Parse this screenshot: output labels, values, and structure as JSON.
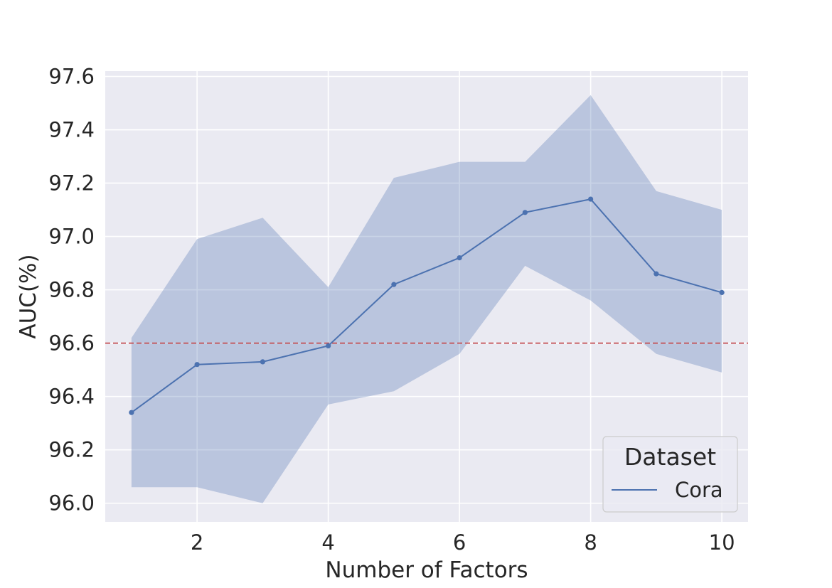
{
  "chart_data": {
    "type": "line",
    "xlabel": "Number of Factors",
    "ylabel": "AUC(%)",
    "xlim": [
      0.6,
      10.4
    ],
    "ylim": [
      95.93,
      97.62
    ],
    "xticks": [
      2,
      4,
      6,
      8,
      10
    ],
    "yticks": [
      96.0,
      96.2,
      96.4,
      96.6,
      96.8,
      97.0,
      97.2,
      97.4,
      97.6
    ],
    "xtick_labels": [
      "2",
      "4",
      "6",
      "8",
      "10"
    ],
    "ytick_labels": [
      "96.0",
      "96.2",
      "96.4",
      "96.6",
      "96.8",
      "97.0",
      "97.2",
      "97.4",
      "97.6"
    ],
    "grid": true,
    "series": [
      {
        "name": "Cora",
        "color": "#4c72b0",
        "x": [
          1,
          2,
          3,
          4,
          5,
          6,
          7,
          8,
          9,
          10
        ],
        "y": [
          96.34,
          96.52,
          96.53,
          96.59,
          96.82,
          96.92,
          97.09,
          97.14,
          96.86,
          96.79
        ],
        "ci_lower": [
          96.06,
          96.06,
          96.0,
          96.37,
          96.42,
          96.56,
          96.89,
          96.76,
          96.56,
          96.49
        ],
        "ci_upper": [
          96.62,
          96.99,
          97.07,
          96.81,
          97.22,
          97.28,
          97.28,
          97.53,
          97.17,
          97.1
        ]
      }
    ],
    "reference_line": {
      "y": 96.6,
      "style": "dashed",
      "color": "#c44e52"
    },
    "legend": {
      "title": "Dataset",
      "placement": "bottom-right"
    }
  }
}
